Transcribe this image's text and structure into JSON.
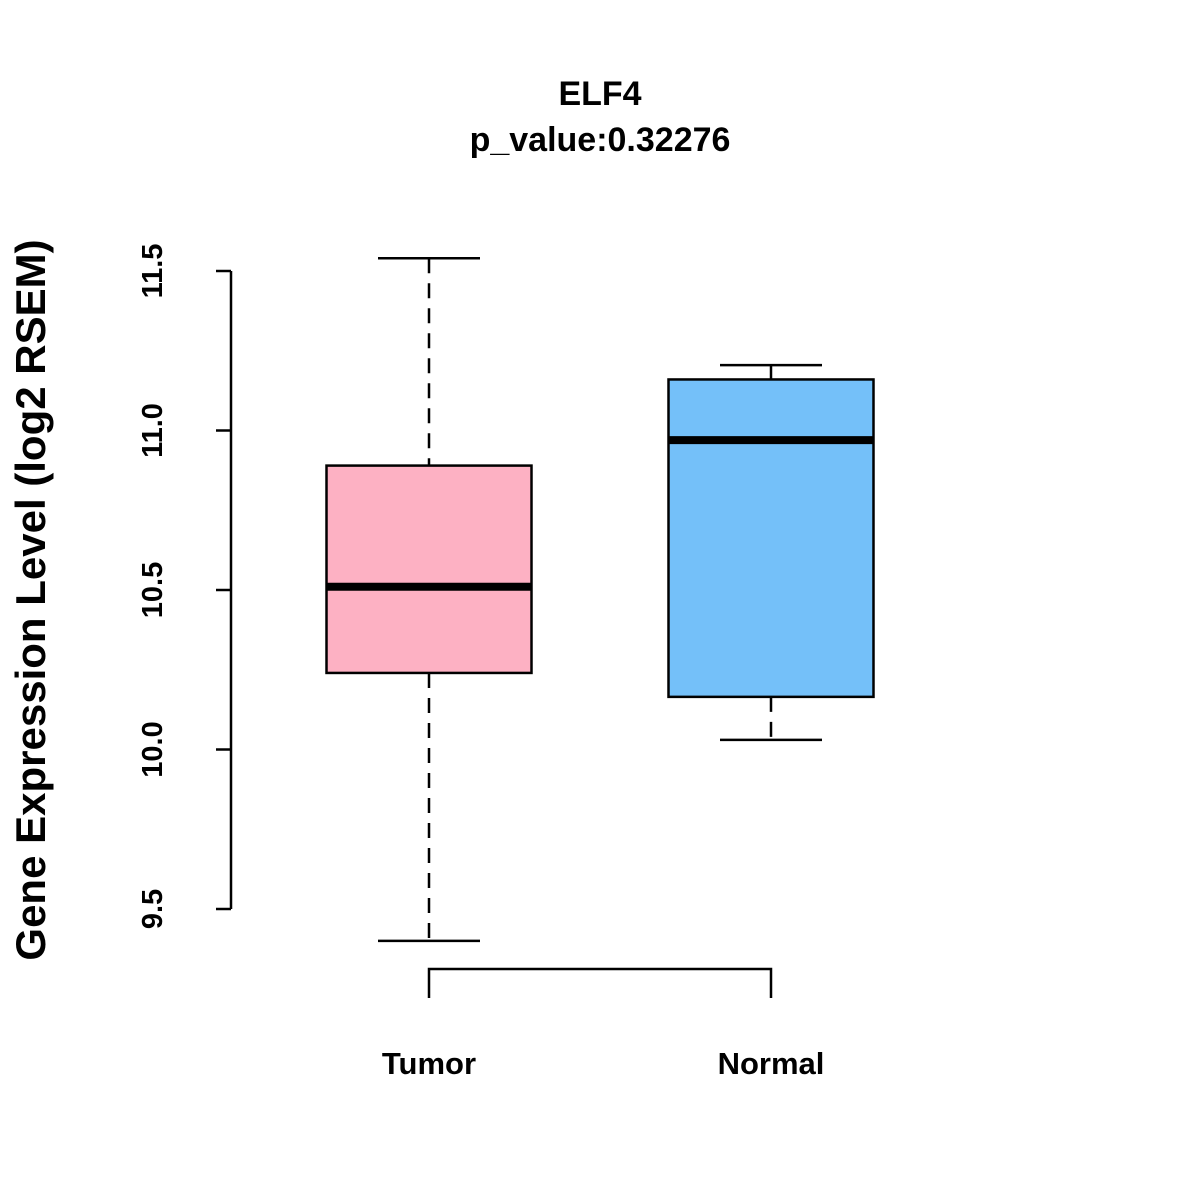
{
  "chart_data": {
    "type": "boxplot",
    "title": "ELF4",
    "subtitle": "p_value:0.32276",
    "xlabel": "",
    "ylabel": "Gene Expression Level (log2 RSEM)",
    "ylim": [
      9.5,
      11.5
    ],
    "yticks": [
      "9.5",
      "10.0",
      "10.5",
      "11.0",
      "11.5"
    ],
    "grid": false,
    "categories": [
      "Tumor",
      "Normal"
    ],
    "boxes": [
      {
        "name": "Tumor",
        "color": "#FDB1C3",
        "whisker_low": 9.4,
        "q1": 10.24,
        "median": 10.51,
        "q3": 10.89,
        "whisker_high": 11.54
      },
      {
        "name": "Normal",
        "color": "#74C0F9",
        "whisker_low": 10.03,
        "q1": 10.165,
        "median": 10.97,
        "q3": 11.16,
        "whisker_high": 11.205
      }
    ]
  }
}
